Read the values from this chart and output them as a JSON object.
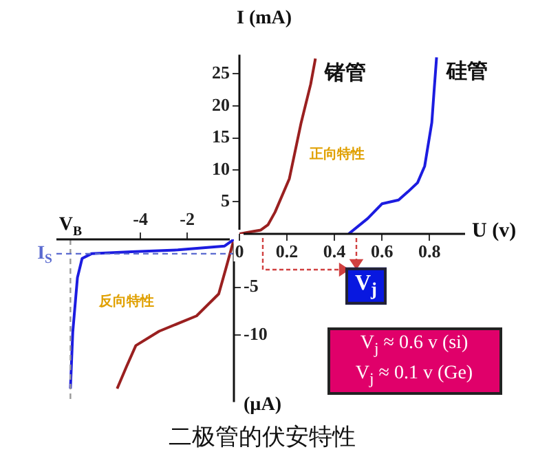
{
  "chart_data": [
    {
      "type": "line",
      "xlabel": "U (v)",
      "ylabel": "I (mA)",
      "marker": "none",
      "xlim": [
        0,
        0.95
      ],
      "ylim": [
        0,
        28
      ],
      "xticks": [
        0,
        0.2,
        0.4,
        0.6,
        0.8
      ],
      "yticks": [
        5,
        10,
        15,
        20,
        25
      ],
      "annotations": [
        "正向特性"
      ],
      "series": [
        {
          "name": "锗管",
          "color": "#9a2020",
          "x": [
            0,
            0.06,
            0.09,
            0.12,
            0.15,
            0.21,
            0.26,
            0.3,
            0.32
          ],
          "values": [
            0,
            0.4,
            0.6,
            1.4,
            3.4,
            8.6,
            17.4,
            23.4,
            27.4
          ]
        },
        {
          "name": "硅管",
          "color": "#1c1ce0",
          "x": [
            0.46,
            0.54,
            0.6,
            0.67,
            0.71,
            0.75,
            0.78,
            0.81,
            0.82,
            0.83
          ],
          "values": [
            0,
            2.4,
            4.7,
            5.3,
            6.6,
            8,
            10.6,
            17.4,
            22.6,
            27.6
          ]
        }
      ]
    },
    {
      "type": "line",
      "title": "二极管的伏安特性",
      "ylabel": "(µA)",
      "marker": "none",
      "xlim": [
        -7.6,
        0
      ],
      "ylim": [
        -17,
        0
      ],
      "xticks": [
        -4,
        -2
      ],
      "yticks": [
        -5,
        -10
      ],
      "annotations": [
        "反向特性",
        "V$_{j}$",
        "V$_{j}$ ≈ 0.6 v (si)",
        "V$_{j}$ ≈ 0.1 v (Ge)"
      ],
      "ref_lines": [
        {
          "axis": "x",
          "value": -7,
          "label": "V$_{B}$",
          "color": "#999999",
          "line_style": "dashed"
        },
        {
          "axis": "y",
          "value": -1.5,
          "label": "I$_{S}$",
          "color": "#5a6ad0",
          "line_style": "dashed"
        }
      ],
      "series": [
        {
          "color": "#1c1ce0",
          "x": [
            0,
            -0.4,
            -2.4,
            -4.4,
            -6.1,
            -6.5,
            -6.7,
            -6.9,
            -7
          ],
          "values": [
            0,
            -0.7,
            -1.1,
            -1.3,
            -1.5,
            -2,
            -4,
            -9.7,
            -15.6
          ]
        },
        {
          "color": "#9a2020",
          "x": [
            0,
            -0.35,
            -0.65,
            -1.6,
            -3.2,
            -4.2,
            -4.6,
            -5
          ],
          "values": [
            0,
            -3.1,
            -5.7,
            -8,
            -9.6,
            -11.1,
            -13.3,
            -15.6
          ]
        }
      ]
    }
  ]
}
